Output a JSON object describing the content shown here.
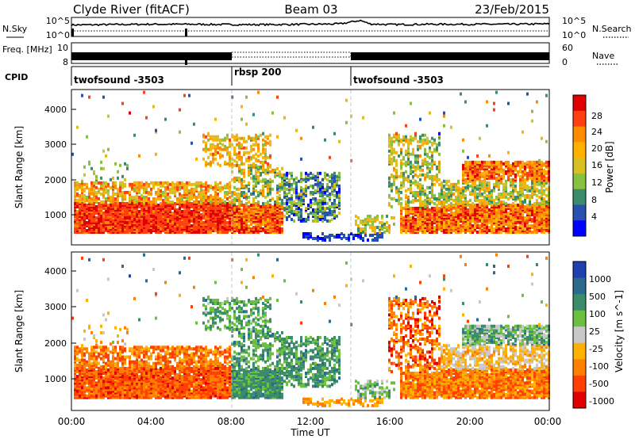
{
  "header": {
    "station": "Clyde River (fitACF)",
    "beam": "Beam 03",
    "date": "23/Feb/2015"
  },
  "chart_data": [
    {
      "panel": "noise",
      "type": "line",
      "left_label": "N.Sky",
      "right_label": "N.Search",
      "left_ticks": [
        "10^5",
        "10^0"
      ],
      "right_ticks": [
        "10^5",
        "10^0"
      ],
      "series": [
        {
          "key": "sky",
          "x_hours": [
            0,
            2,
            4,
            6,
            8,
            10,
            12,
            13.5,
            14.5,
            15,
            16,
            18,
            20,
            22,
            24
          ],
          "log_values": [
            3.3,
            3.4,
            3.5,
            3.5,
            3.4,
            3.4,
            3.5,
            3.6,
            4.6,
            3.6,
            3.4,
            3.5,
            3.5,
            3.5,
            3.6
          ]
        },
        {
          "key": "search",
          "x_hours": [
            0,
            24
          ],
          "log_values": [
            1.6,
            1.6
          ]
        }
      ]
    },
    {
      "panel": "freq",
      "type": "line",
      "left_label": "Freq. [MHz]",
      "right_label": "Nave",
      "left_ticks": [
        "10",
        "8"
      ],
      "right_ticks": [
        "60",
        "0"
      ],
      "cpid_label": "CPID",
      "segments": [
        {
          "start": 0,
          "end": 8,
          "mode": "twofsound",
          "label": "twofsound -3503"
        },
        {
          "start": 8,
          "end": 14,
          "mode": "single",
          "label": "rbsp 200"
        },
        {
          "start": 14,
          "end": 24,
          "mode": "twofsound",
          "label": "twofsound -3503"
        }
      ]
    },
    {
      "panel": "power",
      "type": "heatmap",
      "ylabel": "Slant Range [km]",
      "ylim": [
        200,
        4600
      ],
      "yticks": [
        "1000",
        "2000",
        "3000",
        "4000"
      ],
      "colorbar_label": "Power [dB]",
      "colorbar_ticks": [
        "28",
        "24",
        "20",
        "16",
        "12",
        "8",
        "4"
      ],
      "colorbar_colors": [
        "#e00000",
        "#ff4010",
        "#ff8c00",
        "#ffb000",
        "#d8c020",
        "#88c040",
        "#3a8c6a",
        "#2850b0",
        "#0000ff"
      ]
    },
    {
      "panel": "velocity",
      "type": "heatmap",
      "ylabel": "Slant Range [km]",
      "ylim": [
        200,
        4600
      ],
      "yticks": [
        "1000",
        "2000",
        "3000",
        "4000"
      ],
      "colorbar_label": "Velocity [m s^-1]",
      "colorbar_ticks": [
        "1000",
        "500",
        "100",
        "25",
        "-25",
        "-100",
        "-500",
        "-1000"
      ],
      "colorbar_colors": [
        "#2040b0",
        "#2a6a8c",
        "#3a8c6a",
        "#6cc040",
        "#c8c8c8",
        "#ffb000",
        "#ff8000",
        "#ff4000",
        "#e00000"
      ]
    }
  ],
  "time_axis": {
    "label": "Time UT",
    "ticks": [
      "00:00",
      "04:00",
      "08:00",
      "12:00",
      "16:00",
      "20:00",
      "00:00"
    ]
  },
  "scatter": {
    "blocks": [
      {
        "t0": 0.1,
        "t1": 7.9,
        "r0": 500,
        "r1": 1350,
        "p": 0.9,
        "power": [
          0.75,
          0.97
        ],
        "vel": [
          0.08,
          0.34
        ]
      },
      {
        "t0": 0.1,
        "t1": 7.9,
        "r0": 1350,
        "r1": 1950,
        "p": 0.55,
        "power": [
          0.42,
          0.85
        ],
        "vel": [
          0.12,
          0.42
        ]
      },
      {
        "t0": 0.4,
        "t1": 2.8,
        "r0": 1950,
        "r1": 2500,
        "p": 0.12,
        "power": [
          0.25,
          0.6
        ],
        "vel": [
          0.25,
          0.6
        ]
      },
      {
        "t0": 8.0,
        "t1": 10.6,
        "r0": 500,
        "r1": 1300,
        "p": 0.85,
        "power": [
          0.6,
          0.97
        ],
        "vel": [
          0.62,
          0.8
        ]
      },
      {
        "t0": 8.0,
        "t1": 10.6,
        "r0": 1300,
        "r1": 2400,
        "p": 0.45,
        "power": [
          0.2,
          0.7
        ],
        "vel": [
          0.55,
          0.8
        ]
      },
      {
        "t0": 6.5,
        "t1": 10.0,
        "r0": 2400,
        "r1": 3300,
        "p": 0.35,
        "power": [
          0.4,
          0.8
        ],
        "vel": [
          0.55,
          0.78
        ]
      },
      {
        "t0": 10.5,
        "t1": 13.5,
        "r0": 800,
        "r1": 2200,
        "p": 0.45,
        "power": [
          0.06,
          0.5
        ],
        "vel": [
          0.6,
          0.8
        ]
      },
      {
        "t0": 11.5,
        "t1": 15.6,
        "r0": 250,
        "r1": 480,
        "p": 0.35,
        "power": [
          0.05,
          0.2
        ],
        "vel": [
          0.25,
          0.42
        ]
      },
      {
        "t0": 14.2,
        "t1": 16.2,
        "r0": 500,
        "r1": 1000,
        "p": 0.35,
        "power": [
          0.3,
          0.7
        ],
        "vel": [
          0.5,
          0.75
        ]
      },
      {
        "t0": 15.8,
        "t1": 18.5,
        "r0": 1200,
        "r1": 3300,
        "p": 0.4,
        "power": [
          0.25,
          0.7
        ],
        "vel": [
          0.05,
          0.45
        ]
      },
      {
        "t0": 16.5,
        "t1": 24.0,
        "r0": 500,
        "r1": 1300,
        "p": 0.85,
        "power": [
          0.55,
          0.97
        ],
        "vel": [
          0.12,
          0.42
        ]
      },
      {
        "t0": 16.5,
        "t1": 24.0,
        "r0": 1300,
        "r1": 2000,
        "p": 0.55,
        "power": [
          0.25,
          0.7
        ],
        "vel": [
          0.3,
          0.55
        ]
      },
      {
        "t0": 19.5,
        "t1": 24.0,
        "r0": 1800,
        "r1": 2500,
        "p": 0.7,
        "power": [
          0.55,
          0.95
        ],
        "vel": [
          0.45,
          0.8
        ]
      },
      {
        "t0": 0.0,
        "t1": 24.0,
        "r0": 2500,
        "r1": 4500,
        "p": 0.012,
        "power": [
          0.1,
          0.9
        ],
        "vel": [
          0.1,
          0.9
        ]
      }
    ]
  }
}
